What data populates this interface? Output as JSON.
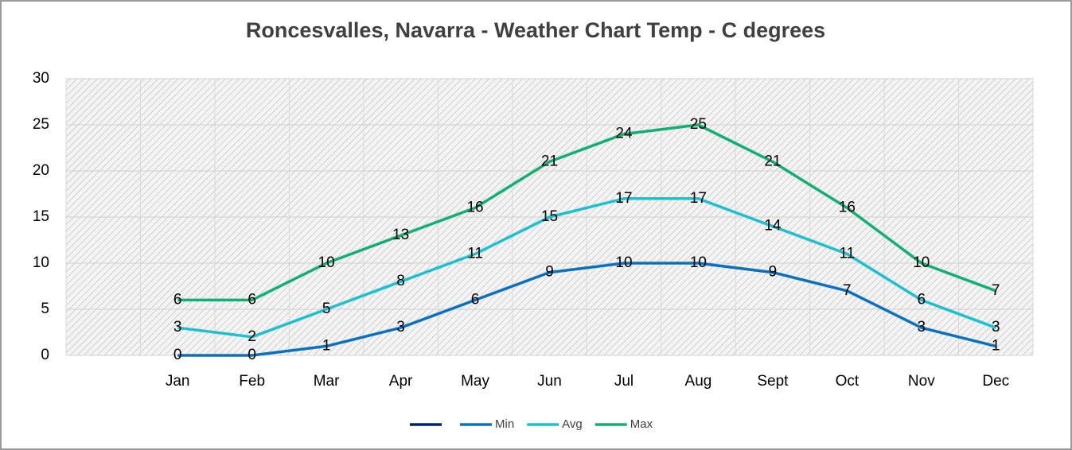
{
  "chart_data": {
    "type": "line",
    "title": "Roncesvalles, Navarra - Weather Chart Temp - C degrees",
    "categories": [
      null,
      "Jan",
      "Feb",
      "Mar",
      "Apr",
      "May",
      "Jun",
      "Jul",
      "Aug",
      "Sept",
      "Oct",
      "Nov",
      "Dec"
    ],
    "series": [
      {
        "name": null,
        "color": "#002080",
        "values": [
          null,
          null,
          null,
          null,
          null,
          null,
          null,
          null,
          null,
          null,
          null,
          null,
          null
        ]
      },
      {
        "name": "Min",
        "color": "#0a70c0",
        "values": [
          null,
          0,
          0,
          1,
          3,
          6,
          9,
          10,
          10,
          9,
          7,
          3,
          1
        ]
      },
      {
        "name": "Avg",
        "color": "#1cc0d0",
        "values": [
          null,
          3,
          2,
          5,
          8,
          11,
          15,
          17,
          17,
          14,
          11,
          6,
          3
        ]
      },
      {
        "name": "Max",
        "color": "#10b070",
        "values": [
          null,
          6,
          6,
          10,
          13,
          16,
          21,
          24,
          25,
          21,
          16,
          10,
          7
        ]
      }
    ],
    "ylim": [
      0,
      30
    ],
    "yticks": [
      0,
      5,
      10,
      15,
      20,
      25,
      30
    ],
    "grid": true,
    "legend": "bottom"
  }
}
